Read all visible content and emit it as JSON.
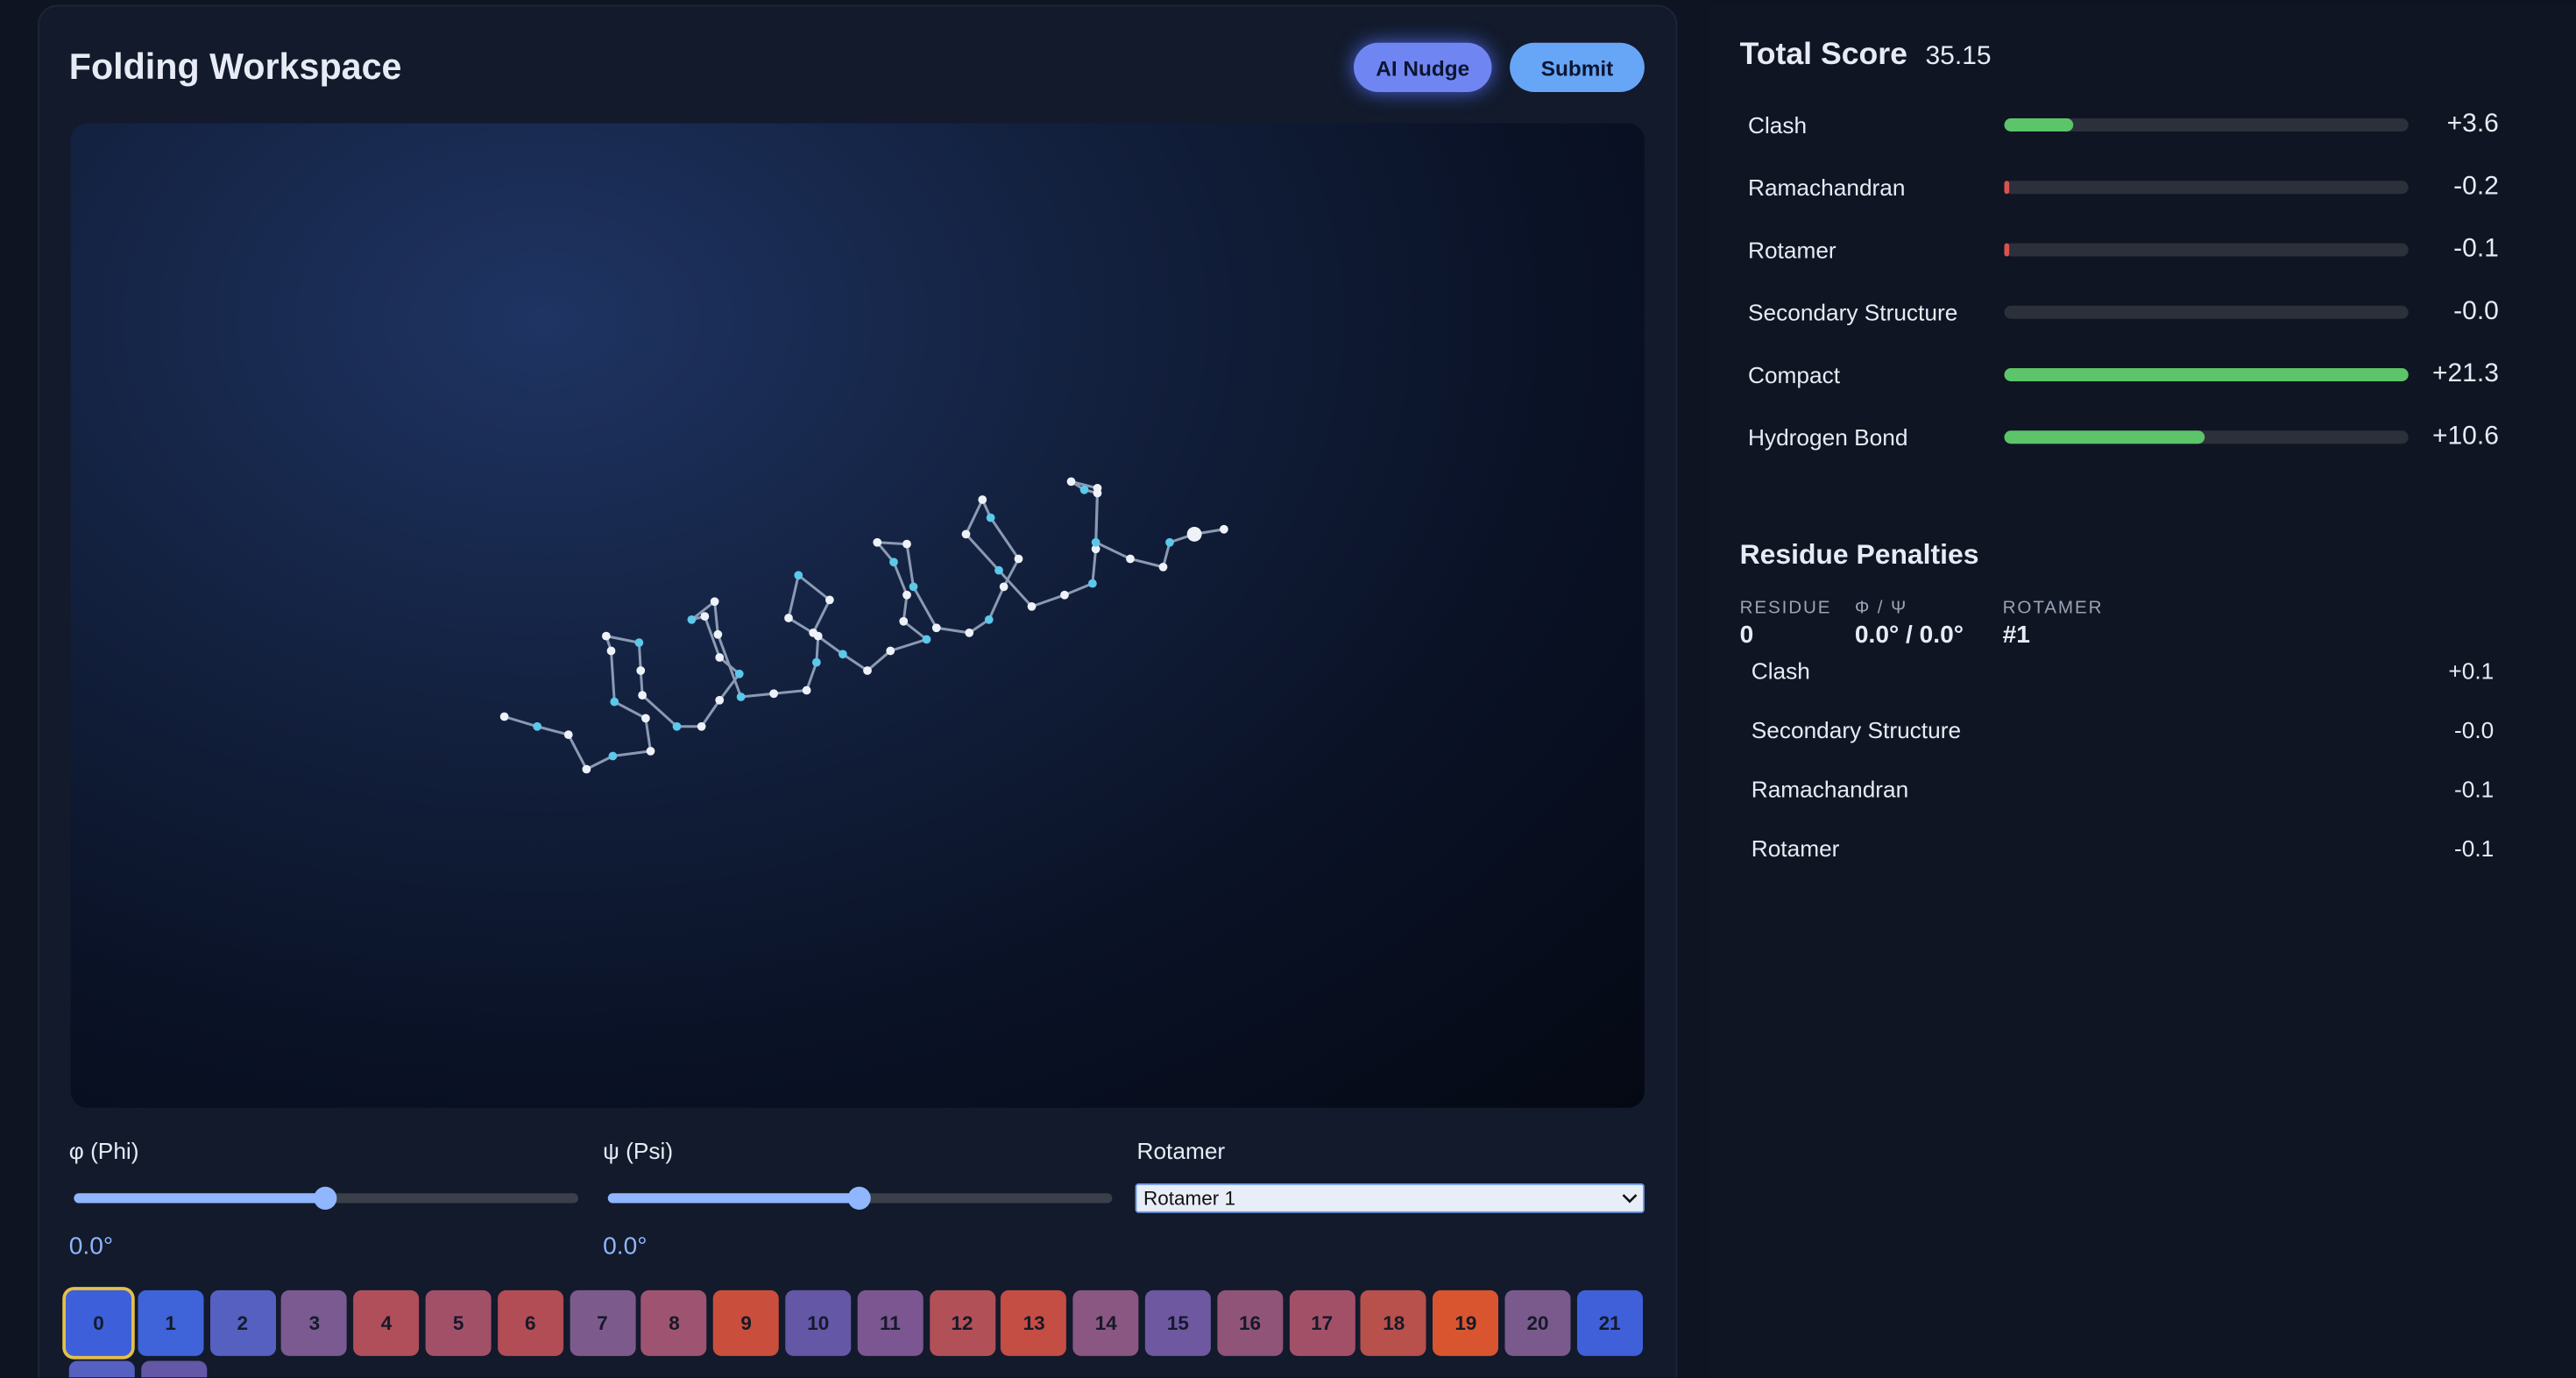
{
  "workspace": {
    "title": "Folding Workspace",
    "buttons": [
      "AI Nudge",
      "Submit"
    ]
  },
  "score": {
    "title": "Total Score",
    "total": 35.15,
    "terms": [
      {
        "name": "Clash",
        "value": 3.6,
        "label": "+3.6"
      },
      {
        "name": "Ramachandran",
        "value": -0.2,
        "label": "-0.2"
      },
      {
        "name": "Rotamer",
        "value": -0.1,
        "label": "-0.1"
      },
      {
        "name": "Secondary Structure",
        "value": -0.0,
        "label": "-0.0"
      },
      {
        "name": "Compact",
        "value": 21.3,
        "label": "+21.3"
      },
      {
        "name": "Hydrogen Bond",
        "value": 10.6,
        "label": "+10.6"
      }
    ]
  },
  "residue_penalties": {
    "title": "Residue Penalties",
    "fields": [
      {
        "label": "RESIDUE",
        "value": "0"
      },
      {
        "label": "Φ / Ψ",
        "value": "0.0° / 0.0°"
      },
      {
        "label": "ROTAMER",
        "value": "#1"
      }
    ],
    "terms": [
      {
        "name": "Clash",
        "label": "+0.1"
      },
      {
        "name": "Secondary Structure",
        "label": "-0.0"
      },
      {
        "name": "Ramachandran",
        "label": "-0.1"
      },
      {
        "name": "Rotamer",
        "label": "-0.1"
      }
    ]
  },
  "controls": {
    "phi": {
      "label": "φ (Phi)",
      "readout": "0.0°"
    },
    "psi": {
      "label": "ψ (Psi)",
      "readout": "0.0°"
    },
    "rotamer": {
      "label": "Rotamer",
      "selected": "Rotamer 1"
    }
  },
  "residues": [
    {
      "label": "0",
      "color": "#3d5fd9"
    },
    {
      "label": "1",
      "color": "#3f63d8"
    },
    {
      "label": "2",
      "color": "#5560c0"
    },
    {
      "label": "3",
      "color": "#7a5a90"
    },
    {
      "label": "4",
      "color": "#b04e5a"
    },
    {
      "label": "5",
      "color": "#a25068"
    },
    {
      "label": "6",
      "color": "#b24c55"
    },
    {
      "label": "7",
      "color": "#7d5a8c"
    },
    {
      "label": "8",
      "color": "#9e5470"
    },
    {
      "label": "9",
      "color": "#c94f3c"
    },
    {
      "label": "10",
      "color": "#6357a6"
    },
    {
      "label": "11",
      "color": "#7b5690"
    },
    {
      "label": "12",
      "color": "#b25058"
    },
    {
      "label": "13",
      "color": "#c44d44"
    },
    {
      "label": "14",
      "color": "#8a5682"
    },
    {
      "label": "15",
      "color": "#6e58a0"
    },
    {
      "label": "16",
      "color": "#8f5478"
    },
    {
      "label": "17",
      "color": "#a25068"
    },
    {
      "label": "18",
      "color": "#b8504c"
    },
    {
      "label": "19",
      "color": "#d9552f"
    },
    {
      "label": "20",
      "color": "#7a5a8c"
    },
    {
      "label": "21",
      "color": "#3f60d8"
    }
  ]
}
